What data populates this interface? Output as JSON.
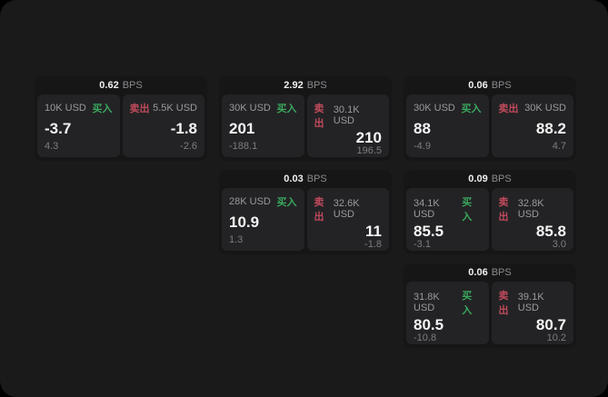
{
  "colors": {
    "page_bg": "#1a1a1b",
    "card_bg": "#161617",
    "panel_bg": "#232325",
    "buy": "#3aa85e",
    "sell": "#c04a5c"
  },
  "labels": {
    "buy": "买入",
    "sell": "卖出",
    "bps": "BPS"
  },
  "cards": [
    {
      "spread": "0.62",
      "buy": {
        "amount": "10K USD",
        "price": "-3.7",
        "delta": "4.3"
      },
      "sell": {
        "amount": "5.5K USD",
        "price": "-1.8",
        "delta": "-2.6"
      }
    },
    {
      "spread": "2.92",
      "buy": {
        "amount": "30K USD",
        "price": "201",
        "delta": "-188.1"
      },
      "sell": {
        "amount": "30.1K USD",
        "price": "210",
        "delta": "196.5"
      }
    },
    {
      "spread": "0.06",
      "buy": {
        "amount": "30K USD",
        "price": "88",
        "delta": "-4.9"
      },
      "sell": {
        "amount": "30K USD",
        "price": "88.2",
        "delta": "4.7"
      }
    },
    {
      "spread": "0.03",
      "buy": {
        "amount": "28K USD",
        "price": "10.9",
        "delta": "1.3"
      },
      "sell": {
        "amount": "32.6K USD",
        "price": "11",
        "delta": "-1.8"
      }
    },
    {
      "spread": "0.09",
      "buy": {
        "amount": "34.1K USD",
        "price": "85.5",
        "delta": "-3.1"
      },
      "sell": {
        "amount": "32.8K USD",
        "price": "85.8",
        "delta": "3.0"
      }
    },
    {
      "spread": "0.06",
      "buy": {
        "amount": "31.8K USD",
        "price": "80.5",
        "delta": "-10.8"
      },
      "sell": {
        "amount": "39.1K USD",
        "price": "80.7",
        "delta": "10.2"
      }
    }
  ]
}
